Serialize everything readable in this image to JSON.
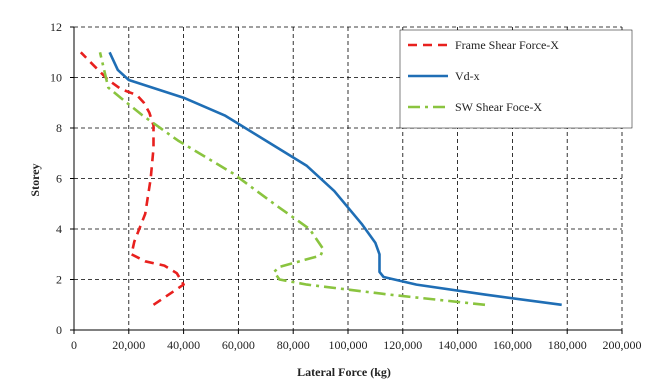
{
  "chart_data": {
    "type": "line",
    "title": "",
    "xlabel": "Lateral Force (kg)",
    "ylabel": "Storey",
    "xlim": [
      0,
      200000
    ],
    "ylim": [
      0,
      12
    ],
    "x_ticks": [
      0,
      20000,
      40000,
      60000,
      80000,
      100000,
      120000,
      140000,
      160000,
      180000,
      200000
    ],
    "x_tick_labels": [
      "0",
      "20,000",
      "40,000",
      "60,000",
      "80,000",
      "100,000",
      "120,000",
      "140,000",
      "160,000",
      "180,000",
      "200,000"
    ],
    "y_ticks": [
      0,
      2,
      4,
      6,
      8,
      10,
      12
    ],
    "y_tick_labels": [
      "0",
      "2",
      "4",
      "6",
      "8",
      "10",
      "12"
    ],
    "grid": true,
    "grid_style": "dashed",
    "legend_position": "top-right",
    "series": [
      {
        "name": "Frame Shear Force-X",
        "color": "#e8201e",
        "dash": "dashed",
        "points": [
          [
            29000,
            1
          ],
          [
            40000,
            1.8
          ],
          [
            37500,
            2.25
          ],
          [
            33000,
            2.55
          ],
          [
            26000,
            2.72
          ],
          [
            21000,
            3.0
          ],
          [
            22000,
            3.5
          ],
          [
            26000,
            4.6
          ],
          [
            28000,
            6.0
          ],
          [
            29000,
            7.2
          ],
          [
            29000,
            8.1
          ],
          [
            27500,
            8.6
          ],
          [
            25500,
            9.0
          ],
          [
            23000,
            9.3
          ],
          [
            17000,
            9.55
          ],
          [
            12500,
            9.9
          ],
          [
            7000,
            10.5
          ],
          [
            2500,
            11.0
          ]
        ]
      },
      {
        "name": "Vd-x",
        "color": "#1f6eb5",
        "dash": "solid",
        "points": [
          [
            178000,
            1
          ],
          [
            150000,
            1.4
          ],
          [
            125000,
            1.8
          ],
          [
            113000,
            2.1
          ],
          [
            111500,
            2.3
          ],
          [
            111500,
            3.0
          ],
          [
            110000,
            3.45
          ],
          [
            105000,
            4.2
          ],
          [
            95000,
            5.5
          ],
          [
            85000,
            6.5
          ],
          [
            70000,
            7.5
          ],
          [
            55000,
            8.5
          ],
          [
            40000,
            9.2
          ],
          [
            30000,
            9.55
          ],
          [
            20000,
            9.9
          ],
          [
            16000,
            10.3
          ],
          [
            13000,
            11.0
          ]
        ]
      },
      {
        "name": "SW Shear Foce-X",
        "color": "#8ac43f",
        "dash": "dashdot",
        "points": [
          [
            150000,
            1
          ],
          [
            115000,
            1.4
          ],
          [
            85000,
            1.8
          ],
          [
            75000,
            2.0
          ],
          [
            73000,
            2.3
          ],
          [
            75000,
            2.5
          ],
          [
            90000,
            2.95
          ],
          [
            91000,
            3.2
          ],
          [
            86000,
            4.0
          ],
          [
            73000,
            5.0
          ],
          [
            58000,
            6.2
          ],
          [
            38000,
            7.5
          ],
          [
            25000,
            8.5
          ],
          [
            17000,
            9.2
          ],
          [
            12500,
            9.6
          ],
          [
            11000,
            10.3
          ],
          [
            9500,
            11.0
          ]
        ]
      }
    ]
  }
}
